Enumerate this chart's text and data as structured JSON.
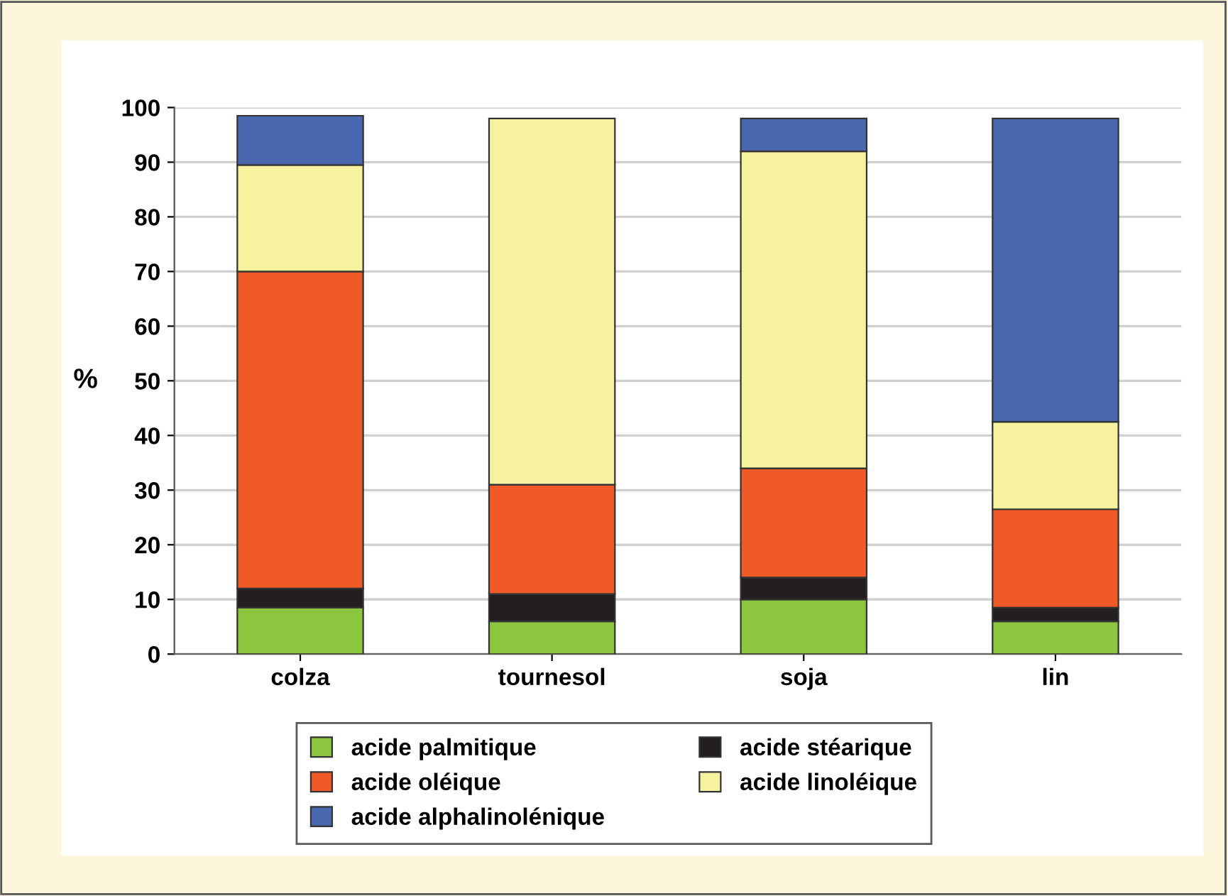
{
  "chart_data": {
    "type": "bar",
    "stacked": true,
    "ylabel": "%",
    "categories": [
      "colza",
      "tournesol",
      "soja",
      "lin"
    ],
    "series": [
      {
        "name": "acide palmitique",
        "color": "#8cc63f",
        "values": [
          8.5,
          6,
          10,
          6
        ]
      },
      {
        "name": "acide stéarique",
        "color": "#231f20",
        "values": [
          3.5,
          5,
          4,
          2.5
        ]
      },
      {
        "name": "acide oléique",
        "color": "#f05a28",
        "values": [
          58,
          20,
          20,
          18
        ]
      },
      {
        "name": "acide linoléique",
        "color": "#f7f29e",
        "values": [
          19.5,
          67,
          58,
          16
        ]
      },
      {
        "name": "acide alphalinolénique",
        "color": "#4a68b0",
        "values": [
          9,
          null,
          6,
          55.5
        ]
      }
    ],
    "ylim": [
      0,
      100
    ],
    "yticks": [
      0,
      10,
      20,
      30,
      40,
      50,
      60,
      70,
      80,
      90,
      100
    ],
    "grid": "y",
    "legend": "bottom"
  }
}
